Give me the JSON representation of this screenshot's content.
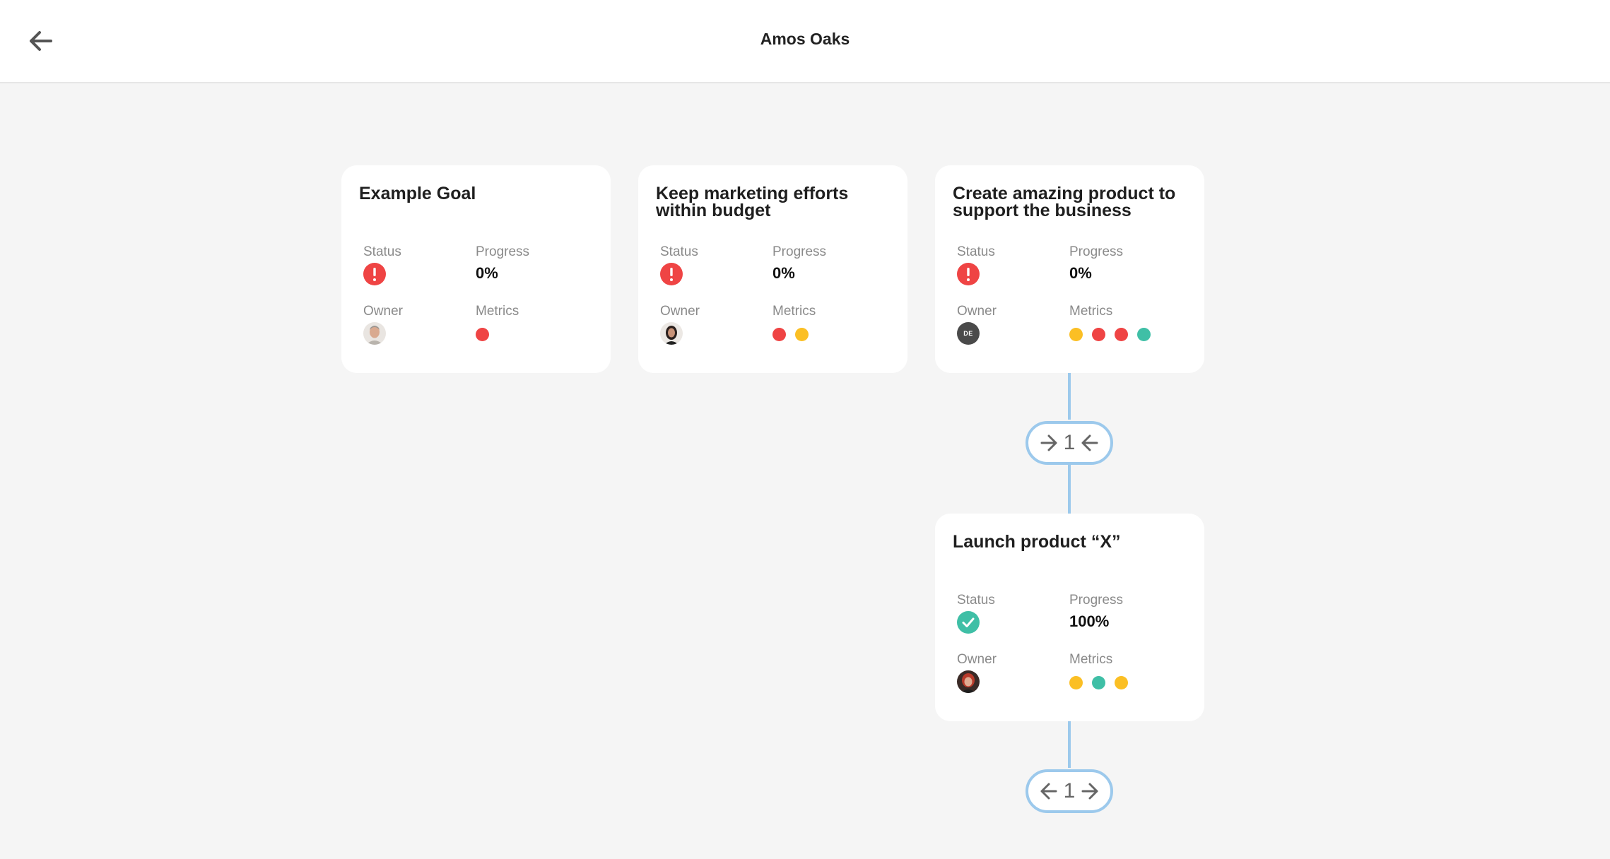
{
  "header": {
    "title": "Amos Oaks",
    "back_icon": "arrow-left-icon"
  },
  "labels": {
    "status": "Status",
    "progress": "Progress",
    "owner": "Owner",
    "metrics": "Metrics"
  },
  "colors": {
    "red": "#ef4444",
    "yellow": "#fbbf24",
    "teal": "#3fbfa6",
    "connector": "#9cc9ec"
  },
  "goals": [
    {
      "title": "Example Goal",
      "status": "alert",
      "progress": "0%",
      "owner": "photo-man-gray-hair",
      "metrics": [
        "red"
      ]
    },
    {
      "title": "Keep marketing efforts within budget",
      "status": "alert",
      "progress": "0%",
      "owner": "photo-woman-dark-hair",
      "metrics": [
        "red",
        "yellow"
      ]
    },
    {
      "title": "Create amazing product to support the business",
      "status": "alert",
      "progress": "0%",
      "owner_initials": "DE",
      "metrics": [
        "yellow",
        "red",
        "red",
        "teal"
      ]
    },
    {
      "title": "Launch product “X”",
      "status": "done",
      "progress": "100%",
      "owner": "photo-woman-red-hair",
      "metrics": [
        "yellow",
        "teal",
        "yellow"
      ]
    }
  ],
  "connectors": [
    {
      "count": "1",
      "icons": [
        "arrow-right-icon",
        "arrow-left-icon"
      ]
    },
    {
      "count": "1",
      "icons": [
        "arrow-left-icon",
        "arrow-right-icon"
      ]
    }
  ]
}
